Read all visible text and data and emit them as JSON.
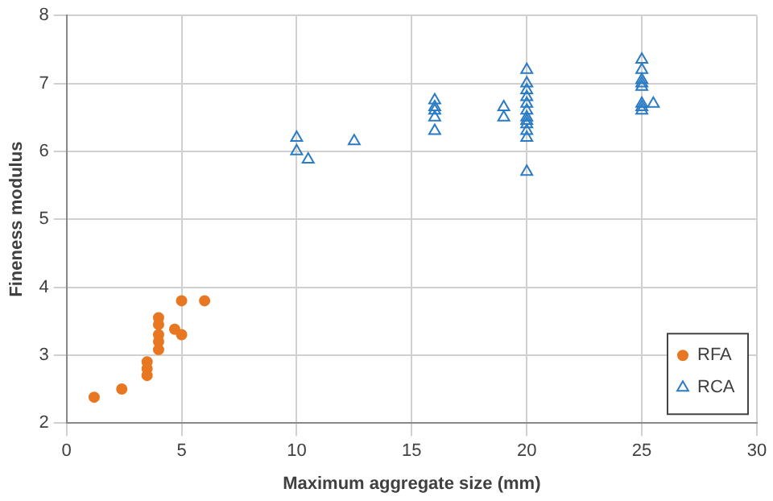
{
  "chart_data": {
    "type": "scatter",
    "xlabel": "Maximum aggregate size (mm)",
    "ylabel": "Fineness modulus",
    "xlim": [
      0,
      30
    ],
    "xticks": [
      0,
      5,
      10,
      15,
      20,
      25,
      30
    ],
    "ylim": [
      2,
      8
    ],
    "yticks": [
      2,
      3,
      4,
      5,
      6,
      7,
      8
    ],
    "grid": true,
    "legend": "bottom right",
    "series": [
      {
        "name": "RFA",
        "color": "#e87722",
        "marker": "circle",
        "x": [
          1.2,
          2.4,
          3.5,
          3.5,
          3.5,
          4,
          4,
          4,
          4,
          4,
          4.7,
          5,
          5,
          6
        ],
        "values": [
          2.38,
          2.5,
          2.7,
          2.8,
          2.9,
          3.08,
          3.2,
          3.3,
          3.45,
          3.55,
          3.38,
          3.8,
          3.3,
          3.8
        ]
      },
      {
        "name": "RCA",
        "color": "#2a7bc4",
        "marker": "triangle",
        "x": [
          10,
          10,
          10.5,
          12.5,
          16,
          16,
          16,
          16,
          16,
          19,
          19,
          20,
          20,
          20,
          20,
          20,
          20,
          20,
          20,
          20,
          20,
          20,
          20,
          25,
          25,
          25,
          25,
          25,
          25,
          25,
          25,
          25.5
        ],
        "values": [
          6.2,
          6.0,
          5.88,
          6.15,
          6.75,
          6.65,
          6.6,
          6.5,
          6.3,
          6.65,
          6.5,
          7.2,
          7.0,
          6.9,
          6.8,
          6.7,
          6.6,
          6.5,
          6.45,
          6.4,
          6.3,
          6.2,
          5.7,
          7.35,
          7.2,
          7.05,
          7.0,
          6.95,
          6.7,
          6.65,
          6.6,
          6.7
        ]
      }
    ]
  }
}
